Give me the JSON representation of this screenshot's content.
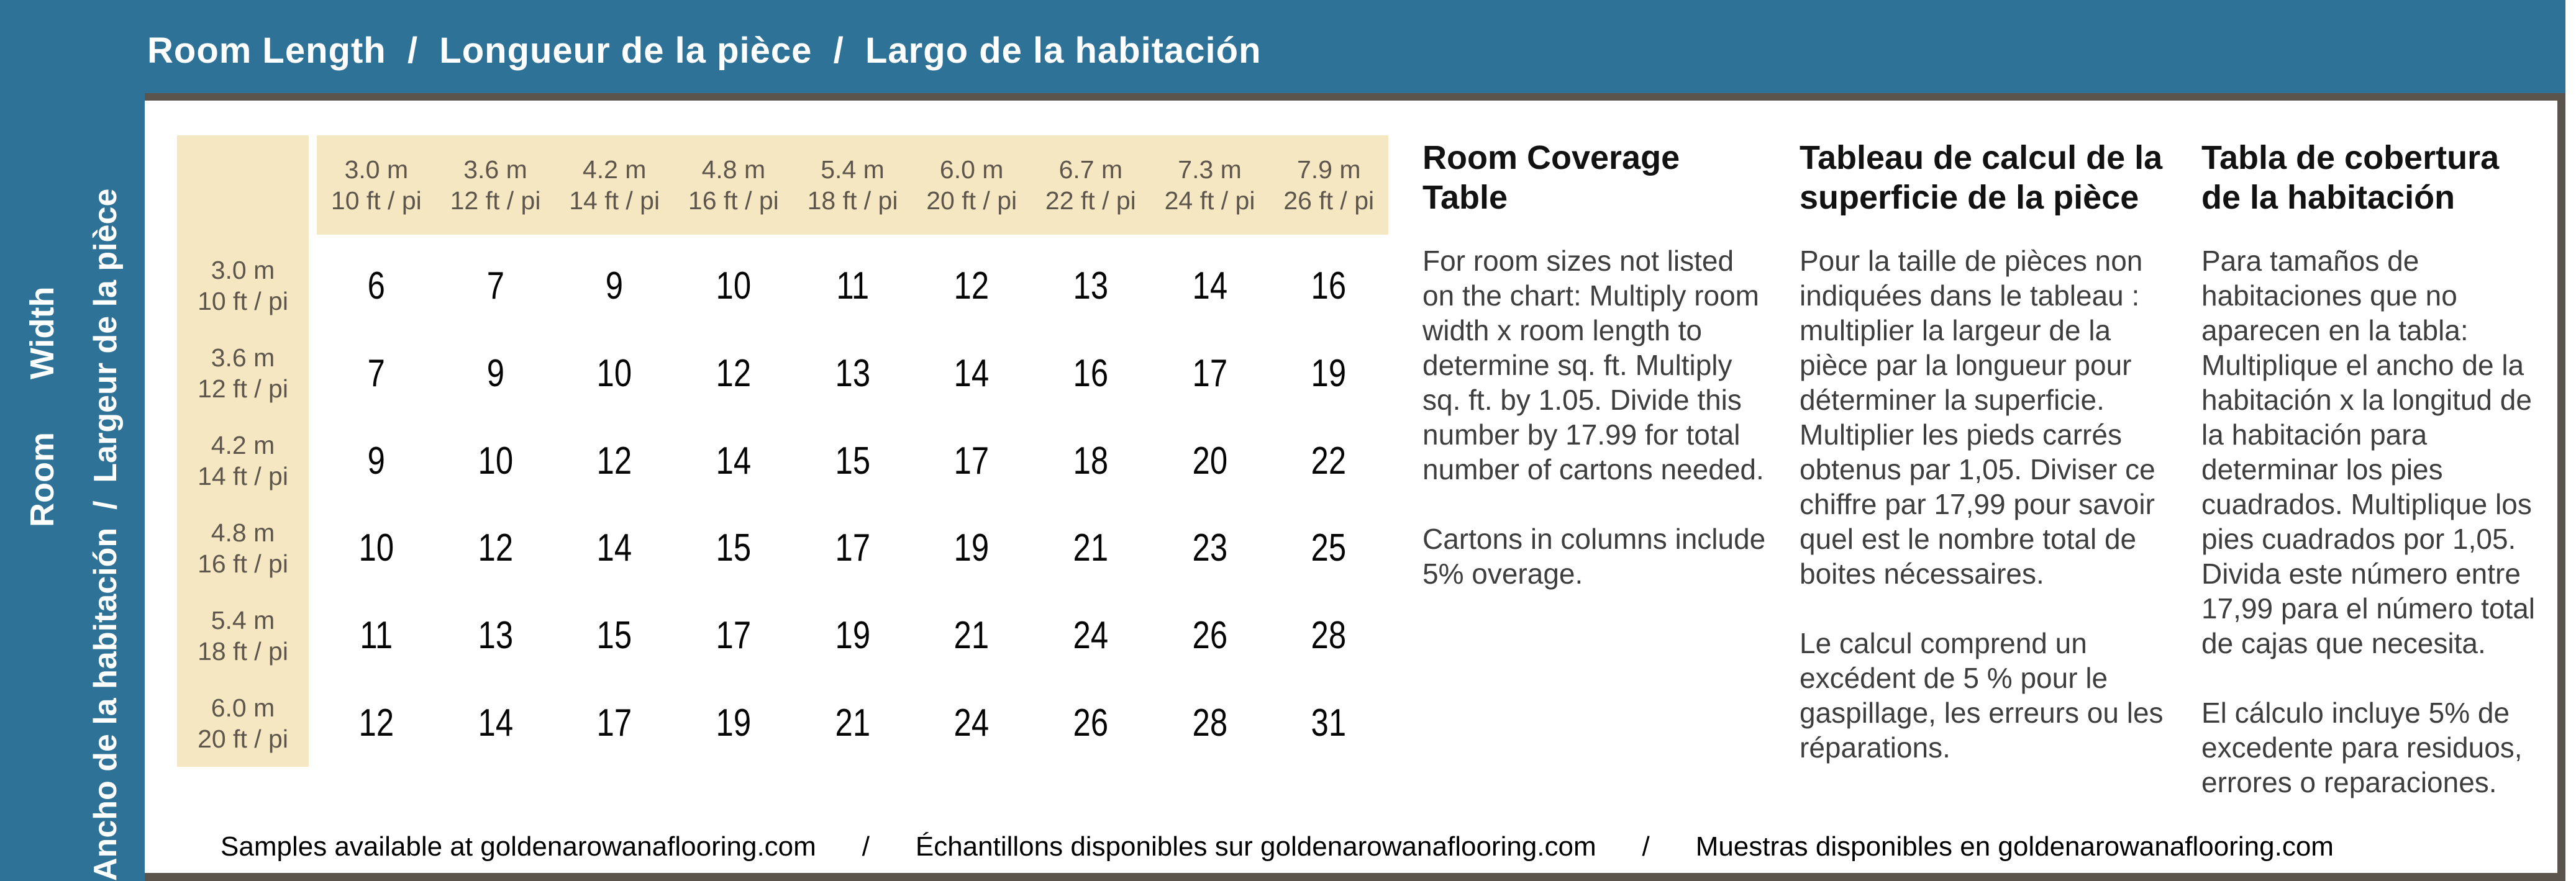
{
  "top_bar": {
    "title": "Room Length  /  Longueur de la pièce  /  Largo de la habitación"
  },
  "side_bar": {
    "outer_label": "Room Width",
    "inner_label": "Ancho de la habitación  /  Largeur de la pièce"
  },
  "table": {
    "column_headers": [
      {
        "metric": "3.0 m",
        "imperial": "10 ft / pi"
      },
      {
        "metric": "3.6 m",
        "imperial": "12 ft / pi"
      },
      {
        "metric": "4.2 m",
        "imperial": "14 ft / pi"
      },
      {
        "metric": "4.8 m",
        "imperial": "16 ft / pi"
      },
      {
        "metric": "5.4 m",
        "imperial": "18 ft / pi"
      },
      {
        "metric": "6.0 m",
        "imperial": "20 ft / pi"
      },
      {
        "metric": "6.7 m",
        "imperial": "22 ft / pi"
      },
      {
        "metric": "7.3 m",
        "imperial": "24 ft / pi"
      },
      {
        "metric": "7.9 m",
        "imperial": "26 ft / pi"
      }
    ],
    "row_headers": [
      {
        "metric": "3.0 m",
        "imperial": "10 ft / pi"
      },
      {
        "metric": "3.6 m",
        "imperial": "12 ft / pi"
      },
      {
        "metric": "4.2 m",
        "imperial": "14 ft / pi"
      },
      {
        "metric": "4.8 m",
        "imperial": "16 ft / pi"
      },
      {
        "metric": "5.4 m",
        "imperial": "18 ft / pi"
      },
      {
        "metric": "6.0 m",
        "imperial": "20 ft / pi"
      }
    ],
    "values": [
      [
        6,
        7,
        9,
        10,
        11,
        12,
        13,
        14,
        16
      ],
      [
        7,
        9,
        10,
        12,
        13,
        14,
        16,
        17,
        19
      ],
      [
        9,
        10,
        12,
        14,
        15,
        17,
        18,
        20,
        22
      ],
      [
        10,
        12,
        14,
        15,
        17,
        19,
        21,
        23,
        25
      ],
      [
        11,
        13,
        15,
        17,
        19,
        21,
        24,
        26,
        28
      ],
      [
        12,
        14,
        17,
        19,
        21,
        24,
        26,
        28,
        31
      ]
    ]
  },
  "info_columns": [
    {
      "id": "en",
      "title": "Room Coverage Table",
      "paragraphs": [
        "For room sizes not listed on the chart: Multiply room width x room length to determine sq. ft. Multiply sq. ft. by 1.05. Divide this number by 17.99 for total number of cartons needed.",
        "Cartons in columns include 5% overage."
      ]
    },
    {
      "id": "fr",
      "title": "Tableau de calcul de la superficie de la pièce",
      "paragraphs": [
        "Pour la taille de pièces non indiquées dans le tableau : multiplier la largeur de la pièce par la longueur pour déterminer la superficie. Multiplier les pieds carrés obtenus par 1,05. Diviser ce chiffre par 17,99 pour savoir quel est le nombre total de boites nécessaires.",
        "Le calcul comprend un excédent de 5 % pour le gaspillage, les erreurs ou les réparations."
      ]
    },
    {
      "id": "es",
      "title": "Tabla de cobertura de la habitación",
      "paragraphs": [
        "Para tamaños de habitaciones que no aparecen en la tabla: Multiplique el ancho de la habitación x la longitud de la habitación para determinar los pies cuadrados. Multiplique los pies cuadrados por 1,05. Divida este número entre 17,99 para el número total de cajas que necesita.",
        "El cálculo incluye 5% de excedente para residuos, errores o reparaciones."
      ]
    }
  ],
  "footer": {
    "separator": "/",
    "segments": [
      "Samples available at goldenarowanaflooring.com",
      "Échantillons disponibles sur goldenarowanaflooring.com",
      "Muestras disponibles en goldenarowanaflooring.com"
    ]
  },
  "colors": {
    "blue": "#2F7298",
    "tan": "#F5E7C1",
    "border": "#5B544C",
    "header_text": "#5E564C",
    "body_text": "#3E3E3E"
  }
}
